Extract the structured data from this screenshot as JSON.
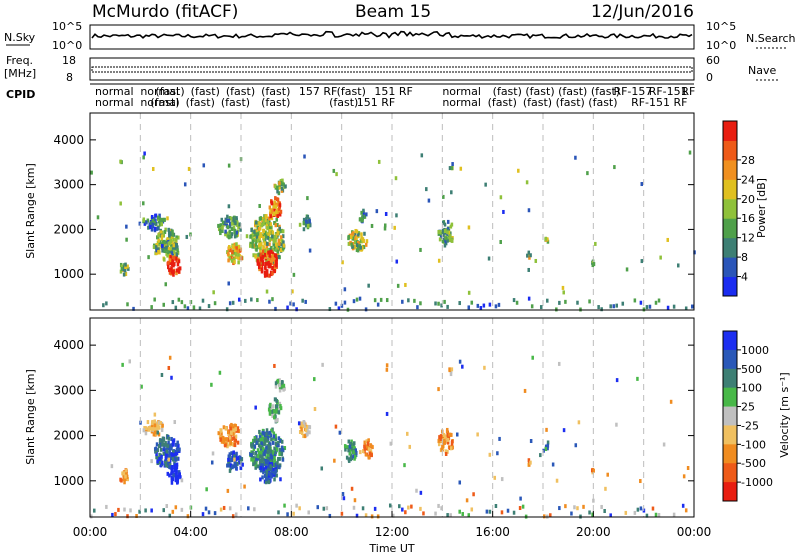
{
  "header": {
    "station": "McMurdo (fitACF)",
    "beam": "Beam 15",
    "date": "12/Jun/2016"
  },
  "top_panels": {
    "nsky_label": "N.Sky",
    "nsky_ticks": [
      "10^5",
      "10^0"
    ],
    "nsearch_label": "N.Search",
    "nsearch_ticks": [
      "10^5",
      "10^0"
    ],
    "freq_label": "Freq.",
    "freq_unit": "[MHz]",
    "freq_ticks": [
      "18",
      "8"
    ],
    "nave_label": "Nave",
    "nave_ticks": [
      "60",
      "0"
    ],
    "cpid_label": "CPID"
  },
  "cpid_row1": [
    "normal",
    "normal",
    "(fast)",
    "(fast)",
    "(fast)",
    "(fast)",
    "157 RF",
    "(fast)",
    "151 RF",
    "normal",
    "(fast)",
    "(fast)",
    "(fast)",
    "(fast)",
    "RF-157",
    "RF-151",
    "RF"
  ],
  "cpid_row2": [
    "normal",
    "normal",
    "(fast)",
    "(fast)",
    "(fast)",
    "(fast)",
    "(fast)",
    "151 RF",
    "normal",
    "(fast)",
    "(fast)",
    "(fast)",
    "(fast)",
    "RF-151 RF"
  ],
  "x_axis": {
    "label": "Time UT",
    "ticks": [
      "00:00",
      "04:00",
      "08:00",
      "12:00",
      "16:00",
      "20:00",
      "00:00"
    ]
  },
  "y_axis": {
    "label": "Slant Range [km]",
    "ticks": [
      "1000",
      "2000",
      "3000",
      "4000"
    ]
  },
  "colorbars": {
    "power": {
      "label": "Power [dB]",
      "ticks": [
        "4",
        "8",
        "12",
        "16",
        "20",
        "24",
        "28"
      ],
      "colors": [
        "#1a2cf0",
        "#2a55b8",
        "#3d7f74",
        "#4fa04a",
        "#8fc13a",
        "#e0c020",
        "#f09020",
        "#ee5a18",
        "#e81d10"
      ]
    },
    "velocity": {
      "label": "Velocity [m s⁻¹]",
      "ticks": [
        "1000",
        "500",
        "100",
        "25",
        "-25",
        "-100",
        "-500",
        "-1000"
      ],
      "colors": [
        "#1c2ef0",
        "#2a58b8",
        "#3d7f74",
        "#48b848",
        "#c0c0c0",
        "#f0c060",
        "#f08c20",
        "#ee5a18",
        "#e81d10"
      ]
    }
  },
  "chart_data": [
    {
      "type": "heatmap",
      "name": "Power",
      "xlabel": "Time UT",
      "ylabel": "Slant Range [km]",
      "xlim_hours": [
        0,
        24
      ],
      "ylim_km": [
        200,
        4600
      ],
      "colorbar": "Power [dB]",
      "blobs": [
        {
          "t": 1.3,
          "r": 1150,
          "dt": 0.35,
          "dr": 300,
          "value": 14
        },
        {
          "t": 2.5,
          "r": 2200,
          "dt": 0.9,
          "dr": 350,
          "value": 10
        },
        {
          "t": 3.0,
          "r": 1700,
          "dt": 1.1,
          "dr": 700,
          "value": 14
        },
        {
          "t": 3.3,
          "r": 1250,
          "dt": 0.55,
          "dr": 450,
          "value": 28
        },
        {
          "t": 5.5,
          "r": 2100,
          "dt": 0.9,
          "dr": 500,
          "value": 12
        },
        {
          "t": 5.7,
          "r": 1500,
          "dt": 0.7,
          "dr": 450,
          "value": 20
        },
        {
          "t": 7.0,
          "r": 1800,
          "dt": 1.4,
          "dr": 1100,
          "value": 16
        },
        {
          "t": 7.0,
          "r": 1300,
          "dt": 0.8,
          "dr": 600,
          "value": 28
        },
        {
          "t": 7.3,
          "r": 2500,
          "dt": 0.5,
          "dr": 500,
          "value": 24
        },
        {
          "t": 7.5,
          "r": 3000,
          "dt": 0.5,
          "dr": 300,
          "value": 16
        },
        {
          "t": 8.5,
          "r": 2200,
          "dt": 0.45,
          "dr": 350,
          "value": 10
        },
        {
          "t": 10.6,
          "r": 1800,
          "dt": 0.8,
          "dr": 450,
          "value": 16
        },
        {
          "t": 10.8,
          "r": 2350,
          "dt": 0.3,
          "dr": 300,
          "value": 8
        },
        {
          "t": 14.1,
          "r": 1950,
          "dt": 0.6,
          "dr": 550,
          "value": 12
        },
        {
          "t": 14.3,
          "r": 3450,
          "dt": 0.2,
          "dr": 150,
          "value": 12
        },
        {
          "t": 17.4,
          "r": 1450,
          "dt": 0.15,
          "dr": 200,
          "value": 16
        },
        {
          "t": 18.1,
          "r": 1850,
          "dt": 0.15,
          "dr": 250,
          "value": 16
        },
        {
          "t": 19.9,
          "r": 1300,
          "dt": 0.15,
          "dr": 150,
          "value": 12
        }
      ]
    },
    {
      "type": "heatmap",
      "name": "Velocity",
      "xlabel": "Time UT",
      "ylabel": "Slant Range [km]",
      "xlim_hours": [
        0,
        24
      ],
      "ylim_km": [
        200,
        4600
      ],
      "colorbar": "Velocity [m s⁻¹]",
      "blobs": [
        {
          "t": 1.3,
          "r": 1150,
          "dt": 0.35,
          "dr": 300,
          "value": -500
        },
        {
          "t": 2.5,
          "r": 2200,
          "dt": 0.9,
          "dr": 350,
          "value": -100
        },
        {
          "t": 3.0,
          "r": 1700,
          "dt": 1.1,
          "dr": 700,
          "value": 500
        },
        {
          "t": 3.3,
          "r": 1200,
          "dt": 0.55,
          "dr": 450,
          "value": 1000
        },
        {
          "t": 5.5,
          "r": 2050,
          "dt": 0.9,
          "dr": 500,
          "value": -500
        },
        {
          "t": 5.7,
          "r": 1450,
          "dt": 0.7,
          "dr": 450,
          "value": 500
        },
        {
          "t": 7.0,
          "r": 1700,
          "dt": 1.4,
          "dr": 1000,
          "value": 100
        },
        {
          "t": 7.0,
          "r": 1250,
          "dt": 0.8,
          "dr": 500,
          "value": 500
        },
        {
          "t": 7.3,
          "r": 2600,
          "dt": 0.5,
          "dr": 500,
          "value": 25
        },
        {
          "t": 7.5,
          "r": 3150,
          "dt": 0.45,
          "dr": 250,
          "value": 25
        },
        {
          "t": 8.5,
          "r": 2200,
          "dt": 0.45,
          "dr": 350,
          "value": -100
        },
        {
          "t": 10.3,
          "r": 1700,
          "dt": 0.5,
          "dr": 450,
          "value": 100
        },
        {
          "t": 11.0,
          "r": 1750,
          "dt": 0.4,
          "dr": 400,
          "value": -500
        },
        {
          "t": 14.1,
          "r": 1900,
          "dt": 0.6,
          "dr": 550,
          "value": -500
        },
        {
          "t": 14.3,
          "r": 3450,
          "dt": 0.2,
          "dr": 150,
          "value": -100
        },
        {
          "t": 17.4,
          "r": 1450,
          "dt": 0.15,
          "dr": 200,
          "value": -500
        },
        {
          "t": 18.1,
          "r": 1850,
          "dt": 0.15,
          "dr": 250,
          "value": 100
        },
        {
          "t": 19.9,
          "r": 1300,
          "dt": 0.15,
          "dr": 150,
          "value": -500
        }
      ]
    }
  ]
}
